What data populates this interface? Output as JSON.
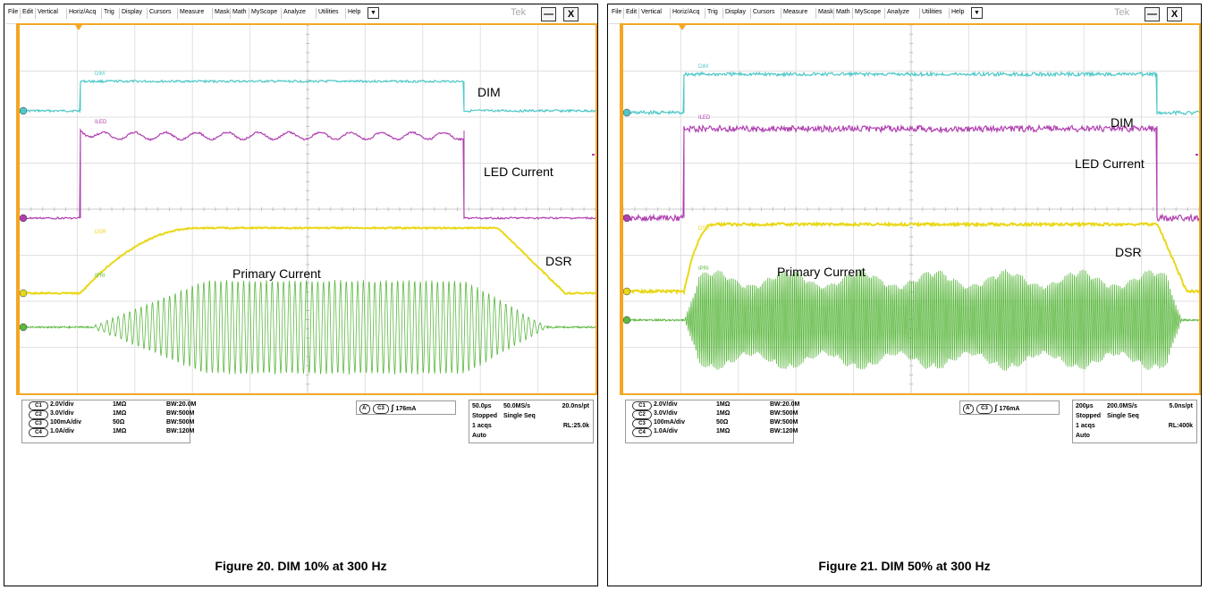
{
  "menu": [
    "File",
    "Edit",
    "Vertical",
    "Horiz/Acq",
    "Trig",
    "Display",
    "Cursors",
    "Measure",
    "Mask",
    "Math",
    "MyScope",
    "Analyze",
    "Utilities",
    "Help"
  ],
  "dropdown_glyph": "▼",
  "brand": "Tek",
  "window_buttons": {
    "minimize": "—",
    "close": "X"
  },
  "colors": {
    "dim": "#4fc8c8",
    "iled": "#b040b0",
    "dsr": "#e8d818",
    "ipri": "#5cb840",
    "border": "#f5a623"
  },
  "panels": [
    {
      "trace_tags": {
        "dim": "DIM",
        "iled": "ILED",
        "dsr": "DSR",
        "ipri": "IPRI"
      },
      "labels": {
        "dim": "DIM",
        "led": "LED Current",
        "dsr": "DSR",
        "primary": "Primary Current"
      },
      "channels": [
        {
          "badge": "C1",
          "scale": "2.0V/div",
          "imp": "1MΩ",
          "bw": "BW:20.0M"
        },
        {
          "badge": "C2",
          "scale": "3.0V/div",
          "imp": "1MΩ",
          "bw": "BW:500M"
        },
        {
          "badge": "C3",
          "scale": "100mA/div",
          "imp": "50Ω",
          "bw": "BW:500M"
        },
        {
          "badge": "C4",
          "scale": "1.0A/div",
          "imp": "1MΩ",
          "bw": "BW:120M"
        }
      ],
      "trigger": {
        "a": "A'",
        "ch": "C3",
        "level": "176mA"
      },
      "acq": {
        "timebase": "50.0µs",
        "rate": "50.0MS/s",
        "res": "20.0ns/pt",
        "state": "Stopped",
        "mode": "Single Seq",
        "acqs": "1 acqs",
        "rl": "RL:25.0k",
        "auto": "Auto"
      },
      "caption": "Figure 20. DIM 10% at 300 Hz"
    },
    {
      "trace_tags": {
        "dim": "DIM",
        "iled": "ILED",
        "dsr": "DSR",
        "ipri": "IPRI"
      },
      "labels": {
        "dim": "DIM",
        "led": "LED Current",
        "dsr": "DSR",
        "primary": "Primary Current"
      },
      "channels": [
        {
          "badge": "C1",
          "scale": "2.0V/div",
          "imp": "1MΩ",
          "bw": "BW:20.0M"
        },
        {
          "badge": "C2",
          "scale": "3.0V/div",
          "imp": "1MΩ",
          "bw": "BW:500M"
        },
        {
          "badge": "C3",
          "scale": "100mA/div",
          "imp": "50Ω",
          "bw": "BW:500M"
        },
        {
          "badge": "C4",
          "scale": "1.0A/div",
          "imp": "1MΩ",
          "bw": "BW:120M"
        }
      ],
      "trigger": {
        "a": "A'",
        "ch": "C3",
        "level": "176mA"
      },
      "acq": {
        "timebase": "200µs",
        "rate": "200.0MS/s",
        "res": "5.0ns/pt",
        "state": "Stopped",
        "mode": "Single Seq",
        "acqs": "1 acqs",
        "rl": "RL:400k",
        "auto": "Auto"
      },
      "caption": "Figure 21. DIM 50% at 300 Hz"
    }
  ]
}
